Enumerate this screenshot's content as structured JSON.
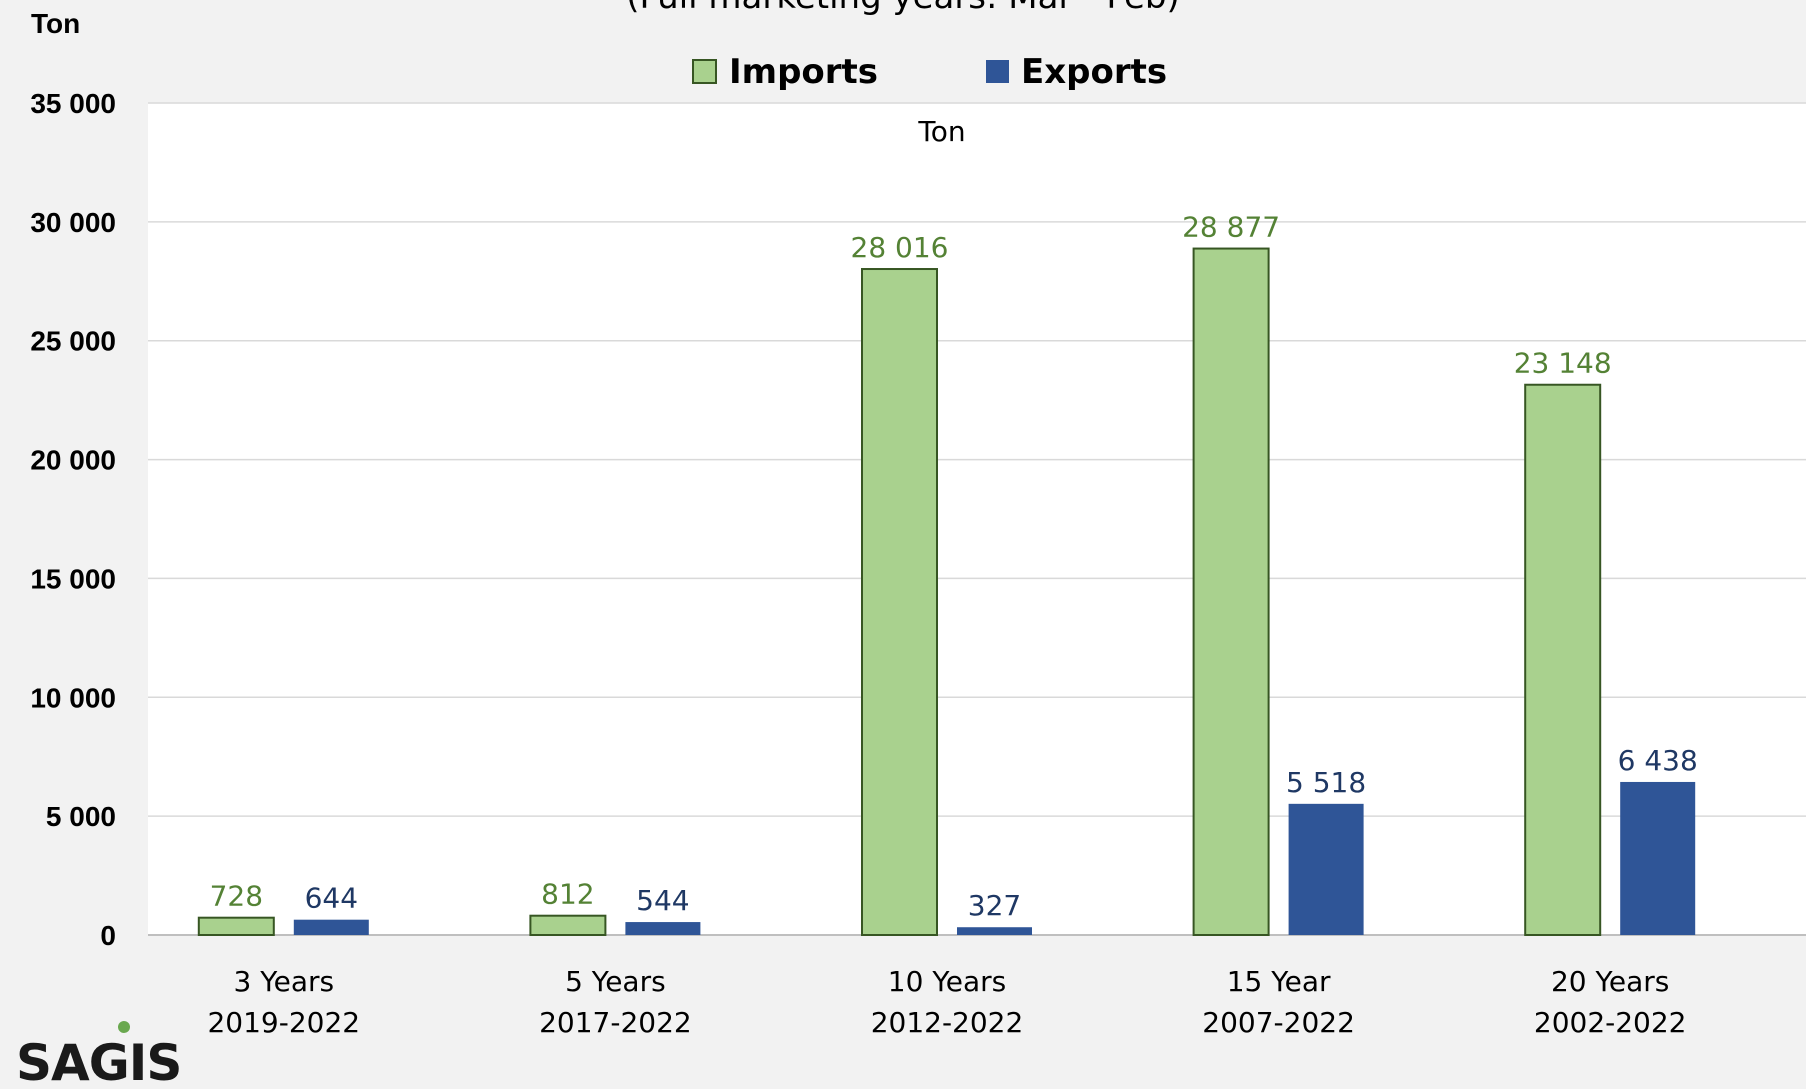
{
  "chart_data": {
    "type": "bar",
    "subtitle": "(Full marketing years: Mar - Feb)",
    "ylabel": "Ton",
    "inner_label": "Ton",
    "categories": [
      [
        "3 Years",
        "2019-2022"
      ],
      [
        "5 Years",
        "2017-2022"
      ],
      [
        "10 Years",
        "2012-2022"
      ],
      [
        "15 Year",
        "2007-2022"
      ],
      [
        "20 Years",
        "2002-2022"
      ]
    ],
    "ylim": [
      0,
      35000
    ],
    "yticks": [
      0,
      5000,
      10000,
      15000,
      20000,
      25000,
      30000,
      35000
    ],
    "ytick_labels": [
      "0",
      "5 000",
      "10 000",
      "15 000",
      "20 000",
      "25 000",
      "30 000",
      "35 000"
    ],
    "grid": true,
    "legend_position": "top-center",
    "series": [
      {
        "name": "Imports",
        "values": [
          728,
          812,
          28016,
          28877,
          23148
        ],
        "labels": [
          "728",
          "812",
          "28 016",
          "28 877",
          "23 148"
        ],
        "color": "#a9d18e",
        "border": "#375623",
        "label_color": "#548235"
      },
      {
        "name": "Exports",
        "values": [
          644,
          544,
          327,
          5518,
          6438
        ],
        "labels": [
          "644",
          "544",
          "327",
          "5 518",
          "6 438"
        ],
        "color": "#2f5597",
        "border": "#2f5597",
        "label_color": "#1f3864"
      }
    ]
  },
  "logo": {
    "text": "SAGIS"
  }
}
